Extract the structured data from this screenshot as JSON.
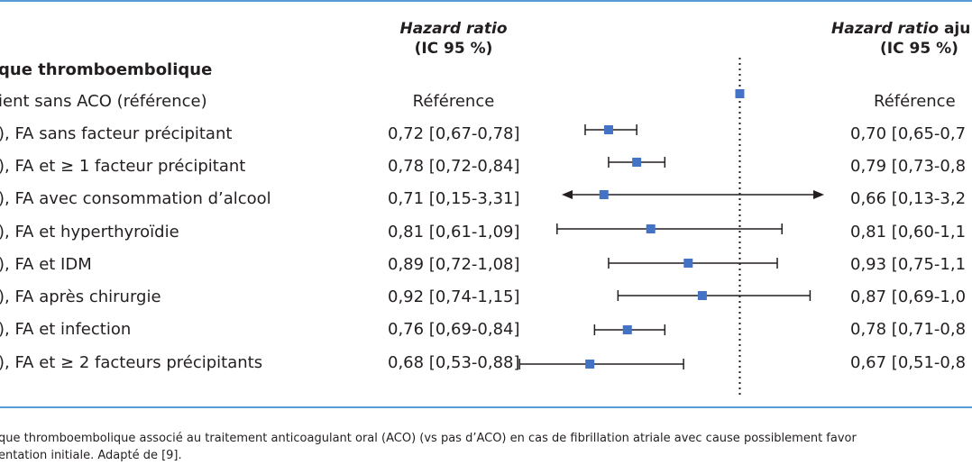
{
  "header": {
    "col1_line1": "Hazard ratio",
    "col1_line2": "(IC 95 %)",
    "col2_line1": "Hazard ratio",
    "col2_line1_suffix": " aju",
    "col2_line2": "(IC 95 %)"
  },
  "section_title": "que thromboembolique",
  "rows": [
    {
      "label": "ient sans ACO (référence)",
      "hr": "Référence",
      "hr_adj": "Référence"
    },
    {
      "label": "), FA sans facteur précipitant",
      "hr": "0,72 [0,67-0,78]",
      "hr_adj": "0,70 [0,65-0,7"
    },
    {
      "label": "), FA et ≥ 1 facteur précipitant",
      "hr": "0,78 [0,72-0,84]",
      "hr_adj": "0,79 [0,73-0,8"
    },
    {
      "label": "), FA avec consommation d’alcool",
      "hr": "0,71 [0,15-3,31]",
      "hr_adj": "0,66 [0,13-3,2"
    },
    {
      "label": "), FA et hyperthyroïdie",
      "hr": "0,81 [0,61-1,09]",
      "hr_adj": "0,81 [0,60-1,1"
    },
    {
      "label": "), FA et IDM",
      "hr": "0,89 [0,72-1,08]",
      "hr_adj": "0,93 [0,75-1,1"
    },
    {
      "label": "), FA après chirurgie",
      "hr": "0,92 [0,74-1,15]",
      "hr_adj": "0,87 [0,69-1,0"
    },
    {
      "label": "), FA et infection",
      "hr": "0,76 [0,69-0,84]",
      "hr_adj": "0,78 [0,71-0,8"
    },
    {
      "label": "), FA et ≥ 2 facteurs précipitants",
      "hr": "0,68 [0,53-0,88]",
      "hr_adj": "0,67 [0,51-0,8"
    }
  ],
  "caption": {
    "line1": "que thromboembolique associé au traitement anticoagulant oral (ACO) (vs pas d’ACO) en cas de fibrillation atriale avec cause possiblement favor",
    "line2": "entation initiale. Adapté de [9]."
  },
  "colors": {
    "rule": "#5b9bd5",
    "marker": "#4472c4",
    "text": "#231f20"
  },
  "chart_data": {
    "type": "forest",
    "reference_line": 1.0,
    "xlim": [
      0.62,
      1.18
    ],
    "estimates": [
      {
        "hr": 1.0,
        "low": null,
        "high": null
      },
      {
        "hr": 0.72,
        "low": 0.67,
        "high": 0.78
      },
      {
        "hr": 0.78,
        "low": 0.72,
        "high": 0.84
      },
      {
        "hr": 0.71,
        "low": 0.15,
        "high": 3.31,
        "clipped_both": true
      },
      {
        "hr": 0.81,
        "low": 0.61,
        "high": 1.09
      },
      {
        "hr": 0.89,
        "low": 0.72,
        "high": 1.08
      },
      {
        "hr": 0.92,
        "low": 0.74,
        "high": 1.15
      },
      {
        "hr": 0.76,
        "low": 0.69,
        "high": 0.84
      },
      {
        "hr": 0.68,
        "low": 0.53,
        "high": 0.88
      }
    ]
  }
}
